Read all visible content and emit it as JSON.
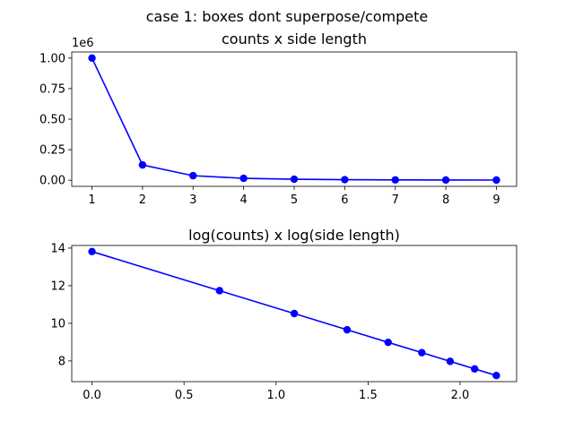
{
  "figure": {
    "suptitle": "case 1: boxes dont superpose/compete"
  },
  "chart_data": [
    {
      "type": "line",
      "title": "counts x side length",
      "xlabel": "",
      "ylabel": "",
      "offset_text": "1e6",
      "series": [
        {
          "color": "#0000ff",
          "marker": "circle",
          "x": [
            1,
            2,
            3,
            4,
            5,
            6,
            7,
            8,
            9
          ],
          "y": [
            1000000,
            125000,
            37037,
            15625,
            8000,
            4630,
            2915,
            1953,
            1372
          ]
        }
      ],
      "xlim": [
        0.6,
        9.4
      ],
      "ylim": [
        -50000,
        1050000
      ],
      "xticks": [
        1,
        2,
        3,
        4,
        5,
        6,
        7,
        8,
        9
      ],
      "xtick_labels": [
        "1",
        "2",
        "3",
        "4",
        "5",
        "6",
        "7",
        "8",
        "9"
      ],
      "yticks": [
        0,
        250000,
        500000,
        750000,
        1000000
      ],
      "ytick_labels": [
        "0.00",
        "0.25",
        "0.50",
        "0.75",
        "1.00"
      ],
      "grid": false
    },
    {
      "type": "line",
      "title": "log(counts) x log(side length)",
      "xlabel": "",
      "ylabel": "",
      "series": [
        {
          "color": "#0000ff",
          "marker": "circle",
          "x": [
            0,
            0.693,
            1.099,
            1.386,
            1.609,
            1.792,
            1.946,
            2.079,
            2.197
          ],
          "y": [
            13.816,
            11.736,
            10.52,
            9.657,
            8.987,
            8.44,
            7.978,
            7.577,
            7.224
          ]
        }
      ],
      "xlim": [
        -0.11,
        2.307
      ],
      "ylim": [
        6.9,
        14.14
      ],
      "xticks": [
        0,
        0.5,
        1,
        1.5,
        2
      ],
      "xtick_labels": [
        "0.0",
        "0.5",
        "1.0",
        "1.5",
        "2.0"
      ],
      "yticks": [
        8,
        10,
        12,
        14
      ],
      "ytick_labels": [
        "8",
        "10",
        "12",
        "14"
      ],
      "grid": false
    }
  ]
}
